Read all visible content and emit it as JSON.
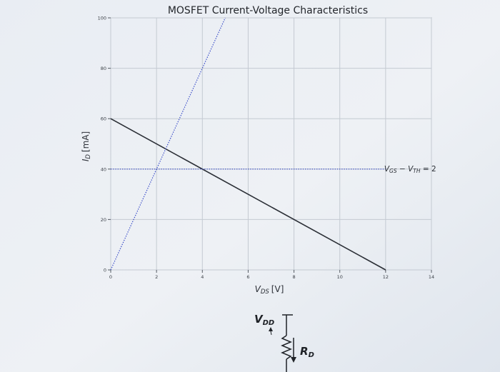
{
  "chart_data": {
    "type": "line",
    "title": "MOSFET Current-Voltage Characteristics",
    "xlabel": "V",
    "xlabel_sub": "DS",
    "xlabel_unit": "[V]",
    "ylabel": "I",
    "ylabel_sub": "D",
    "ylabel_unit": "[mA]",
    "xlim": [
      0,
      14
    ],
    "ylim": [
      0,
      100
    ],
    "xticks": [
      0,
      2,
      4,
      6,
      8,
      10,
      12,
      14
    ],
    "yticks": [
      0,
      20,
      40,
      60,
      80,
      100
    ],
    "grid": true,
    "series": [
      {
        "x": [
          0,
          12
        ],
        "y": [
          60,
          0
        ],
        "style": "solid",
        "color": "#2b2f36"
      },
      {
        "x": [
          0,
          5
        ],
        "y": [
          0,
          100
        ],
        "style": "dotted",
        "color": "#3346c6"
      },
      {
        "x": [
          0,
          12
        ],
        "y": [
          40,
          40
        ],
        "style": "dotted",
        "color": "#3346c6"
      }
    ],
    "annotation": {
      "parts": [
        "V",
        "GS",
        " − V",
        "TH",
        " = 2"
      ],
      "x": 12,
      "y": 40
    }
  },
  "circuit": {
    "supply_label": "V",
    "supply_sub": "DD",
    "resistor_label": "R",
    "resistor_sub": "D"
  }
}
